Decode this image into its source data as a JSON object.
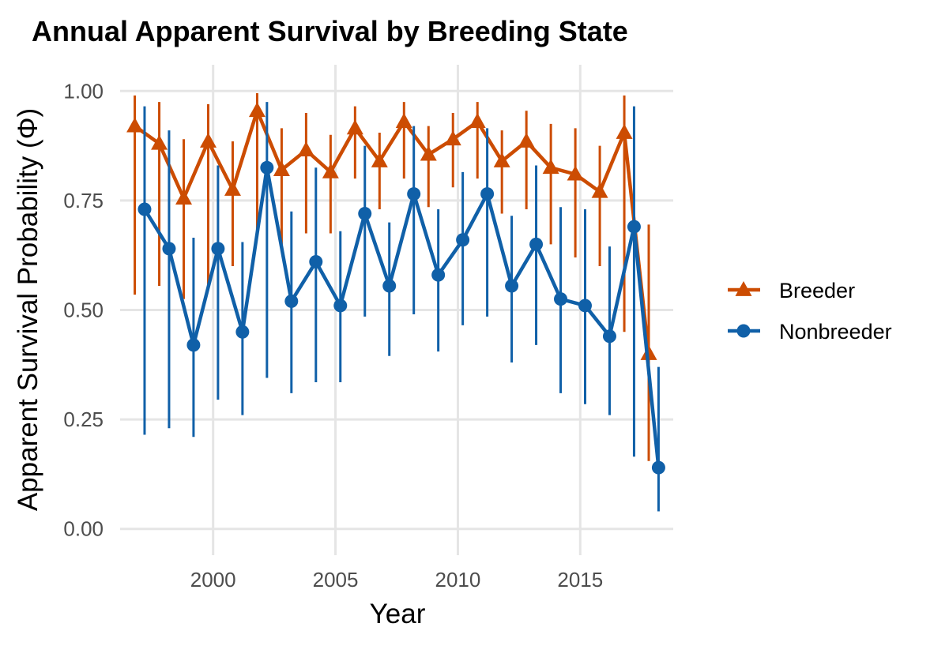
{
  "chart_data": {
    "type": "line",
    "title": "Annual Apparent Survival by Breeding State",
    "xlabel": "Year",
    "ylabel": "Apparent Survival Probability (Φ)",
    "xlim": [
      1996.2,
      2018.8
    ],
    "ylim": [
      -0.06,
      1.06
    ],
    "x_ticks": [
      2000,
      2005,
      2010,
      2015
    ],
    "x_tick_labels": [
      "2000",
      "2005",
      "2010",
      "2015"
    ],
    "y_ticks": [
      0,
      0.25,
      0.5,
      0.75,
      1.0
    ],
    "y_tick_labels": [
      "0.00",
      "0.25",
      "0.50",
      "0.75",
      "1.00"
    ],
    "grid": true,
    "legend_position": "right",
    "x": [
      1997,
      1998,
      1999,
      2000,
      2001,
      2002,
      2003,
      2004,
      2005,
      2006,
      2007,
      2008,
      2009,
      2010,
      2011,
      2012,
      2013,
      2014,
      2015,
      2016,
      2017,
      2018
    ],
    "series": [
      {
        "name": "Breeder",
        "color": "#cc4c02",
        "marker": "triangle",
        "dodge": -0.2,
        "values": [
          0.92,
          0.88,
          0.755,
          0.885,
          0.775,
          0.955,
          0.82,
          0.865,
          0.815,
          0.915,
          0.84,
          0.93,
          0.855,
          0.89,
          0.93,
          0.84,
          0.885,
          0.825,
          0.81,
          0.77,
          0.905,
          0.4
        ],
        "lower": [
          0.535,
          0.555,
          0.525,
          0.55,
          0.6,
          0.68,
          0.65,
          0.675,
          0.675,
          0.8,
          0.73,
          0.8,
          0.735,
          0.78,
          0.8,
          0.72,
          0.73,
          0.65,
          0.62,
          0.6,
          0.45,
          0.155
        ],
        "upper": [
          0.99,
          0.975,
          0.89,
          0.97,
          0.885,
          0.995,
          0.915,
          0.95,
          0.9,
          0.965,
          0.905,
          0.975,
          0.92,
          0.95,
          0.975,
          0.91,
          0.955,
          0.925,
          0.915,
          0.875,
          0.99,
          0.695
        ]
      },
      {
        "name": "Nonbreeder",
        "color": "#1060a8",
        "marker": "circle",
        "dodge": 0.2,
        "values": [
          0.73,
          0.64,
          0.42,
          0.64,
          0.45,
          0.825,
          0.52,
          0.61,
          0.51,
          0.72,
          0.555,
          0.765,
          0.58,
          0.66,
          0.765,
          0.555,
          0.65,
          0.525,
          0.51,
          0.44,
          0.69,
          0.14
        ],
        "lower": [
          0.215,
          0.23,
          0.21,
          0.295,
          0.26,
          0.345,
          0.31,
          0.335,
          0.335,
          0.485,
          0.395,
          0.49,
          0.405,
          0.465,
          0.485,
          0.38,
          0.42,
          0.31,
          0.285,
          0.26,
          0.165,
          0.04
        ],
        "upper": [
          0.965,
          0.91,
          0.665,
          0.83,
          0.655,
          0.975,
          0.725,
          0.825,
          0.68,
          0.875,
          0.7,
          0.92,
          0.73,
          0.815,
          0.915,
          0.715,
          0.83,
          0.735,
          0.73,
          0.645,
          0.965,
          0.37
        ]
      }
    ]
  }
}
